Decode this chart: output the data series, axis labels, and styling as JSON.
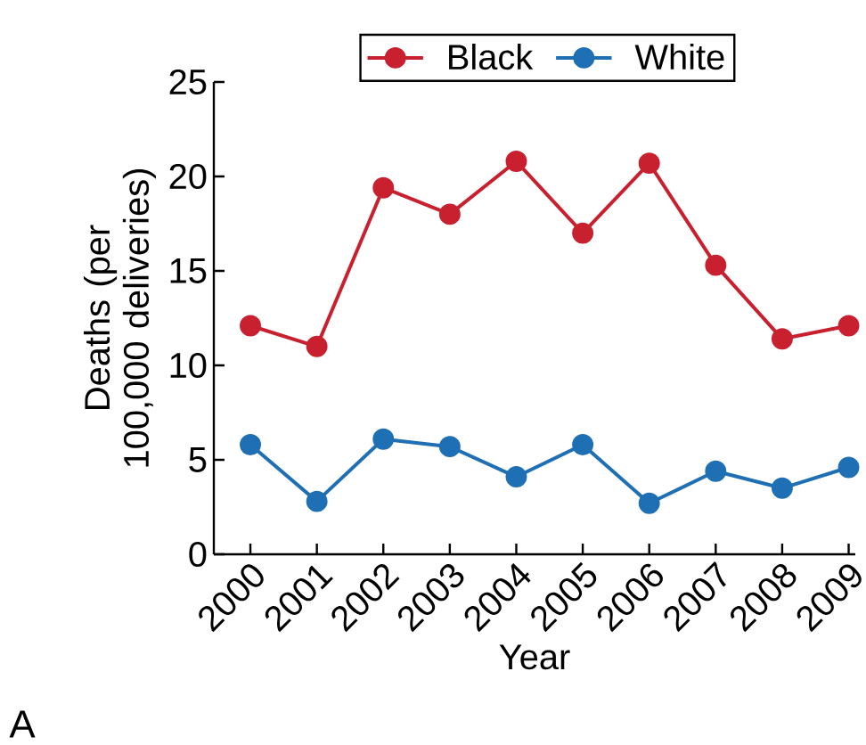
{
  "chart_data": {
    "type": "line",
    "xlabel": "Year",
    "ylabel": "Deaths (per 100,000 deliveries)",
    "categories": [
      "2000",
      "2001",
      "2002",
      "2003",
      "2004",
      "2005",
      "2006",
      "2007",
      "2008",
      "2009"
    ],
    "series": [
      {
        "name": "Black",
        "color": "#c8202f",
        "values": [
          12.1,
          11.0,
          19.4,
          18.0,
          20.8,
          17.0,
          20.7,
          15.3,
          11.4,
          12.1
        ]
      },
      {
        "name": "White",
        "color": "#1f6fb4",
        "values": [
          5.8,
          2.8,
          6.1,
          5.7,
          4.1,
          5.8,
          2.7,
          4.4,
          3.5,
          4.6
        ]
      }
    ],
    "ylim": [
      0,
      25
    ],
    "yticks": [
      0,
      5,
      10,
      15,
      20,
      25
    ],
    "legend": "top",
    "marker": "circle",
    "line_style": "solid",
    "grid": false,
    "annotations": [
      "A"
    ]
  }
}
